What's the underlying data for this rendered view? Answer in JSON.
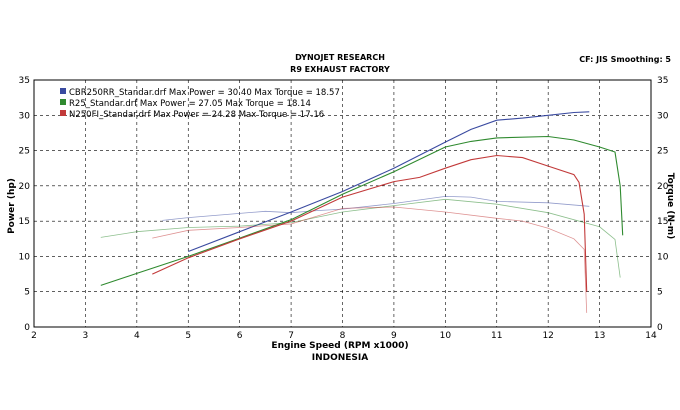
{
  "header": {
    "title": "DYNOJET RESEARCH",
    "subtitle": "R9 EXHAUST FACTORY",
    "settings": "CF: JIS  Smoothing: 5"
  },
  "footer": "INDONESIA",
  "colors": {
    "blue": "#3a4aa0",
    "green": "#2f8a2f",
    "red": "#c23a3a"
  },
  "chart_data": {
    "type": "line",
    "xlabel": "Engine Speed (RPM x1000)",
    "ylabel": "Power (hp)",
    "y2label": "Torque (N-m)",
    "xlim": [
      2,
      14
    ],
    "ylim": [
      0,
      35
    ],
    "y2lim": [
      0,
      35
    ],
    "xticks": [
      2,
      3,
      4,
      5,
      6,
      7,
      8,
      9,
      10,
      11,
      12,
      13,
      14
    ],
    "yticks": [
      0,
      5,
      10,
      15,
      20,
      25,
      30,
      35
    ],
    "grid": true,
    "legend_position": "top-left",
    "legend": [
      "CBR250RR_Standar.drf Max Power = 30.40    Max Torque = 18.57",
      "R25_Standar.drf Max Power = 27.05    Max Torque = 18.14",
      "N250FI_Standar.drf Max Power = 24.28    Max Torque = 17.16"
    ],
    "series": [
      {
        "file": "CBR250RR_Standar.drf",
        "color": "blue",
        "max_power": 30.4,
        "max_torque": 18.57,
        "power": [
          [
            5,
            10.7
          ],
          [
            6,
            13.5
          ],
          [
            7,
            16.3
          ],
          [
            8,
            19.2
          ],
          [
            9,
            22.5
          ],
          [
            10,
            26.2
          ],
          [
            10.5,
            28
          ],
          [
            11,
            29.3
          ],
          [
            11.5,
            29.6
          ],
          [
            12,
            30
          ],
          [
            12.5,
            30.4
          ],
          [
            12.8,
            30.5
          ]
        ],
        "torque": [
          [
            4.5,
            15.1
          ],
          [
            5,
            15.5
          ],
          [
            6,
            16.1
          ],
          [
            6.5,
            16.4
          ],
          [
            7,
            16.2
          ],
          [
            7.5,
            16.5
          ],
          [
            8,
            16.7
          ],
          [
            9,
            17.5
          ],
          [
            10,
            18.5
          ],
          [
            10.5,
            18.4
          ],
          [
            11,
            17.8
          ],
          [
            12,
            17.6
          ],
          [
            12.8,
            17.1
          ]
        ]
      },
      {
        "file": "R25_Standar.drf",
        "color": "green",
        "max_power": 27.05,
        "max_torque": 18.14,
        "power": [
          [
            3.3,
            5.9
          ],
          [
            4,
            7.6
          ],
          [
            5,
            10
          ],
          [
            6,
            12.6
          ],
          [
            7,
            15.2
          ],
          [
            8,
            18.8
          ],
          [
            9,
            22
          ],
          [
            10,
            25.5
          ],
          [
            10.5,
            26.3
          ],
          [
            11,
            26.8
          ],
          [
            12,
            27
          ],
          [
            12.5,
            26.5
          ],
          [
            13,
            25.5
          ],
          [
            13.3,
            24.8
          ],
          [
            13.4,
            20
          ],
          [
            13.45,
            13
          ]
        ],
        "torque": [
          [
            3.3,
            12.7
          ],
          [
            4,
            13.5
          ],
          [
            5,
            14.1
          ],
          [
            6,
            14.3
          ],
          [
            7,
            14.8
          ],
          [
            8,
            16.3
          ],
          [
            9,
            17.2
          ],
          [
            10,
            18.1
          ],
          [
            11,
            17.4
          ],
          [
            12,
            16.2
          ],
          [
            13,
            14.2
          ],
          [
            13.3,
            12.4
          ],
          [
            13.4,
            7
          ]
        ]
      },
      {
        "file": "N250FI_Standar.drf",
        "color": "red",
        "max_power": 24.28,
        "max_torque": 17.16,
        "power": [
          [
            4.3,
            7.5
          ],
          [
            5,
            9.8
          ],
          [
            6,
            12.5
          ],
          [
            7,
            15
          ],
          [
            8,
            18.4
          ],
          [
            9,
            20.6
          ],
          [
            9.5,
            21.2
          ],
          [
            10,
            22.5
          ],
          [
            10.5,
            23.7
          ],
          [
            11,
            24.3
          ],
          [
            11.5,
            24
          ],
          [
            12,
            22.8
          ],
          [
            12.5,
            21.6
          ],
          [
            12.6,
            20.5
          ],
          [
            12.7,
            16
          ],
          [
            12.75,
            5
          ]
        ],
        "torque": [
          [
            4.3,
            12.6
          ],
          [
            5,
            13.7
          ],
          [
            6,
            14.1
          ],
          [
            7,
            14.6
          ],
          [
            8,
            16.8
          ],
          [
            9,
            17
          ],
          [
            10,
            16.3
          ],
          [
            11,
            15.4
          ],
          [
            11.5,
            15
          ],
          [
            12,
            14
          ],
          [
            12.5,
            12.5
          ],
          [
            12.7,
            11
          ],
          [
            12.75,
            2
          ]
        ]
      }
    ]
  }
}
